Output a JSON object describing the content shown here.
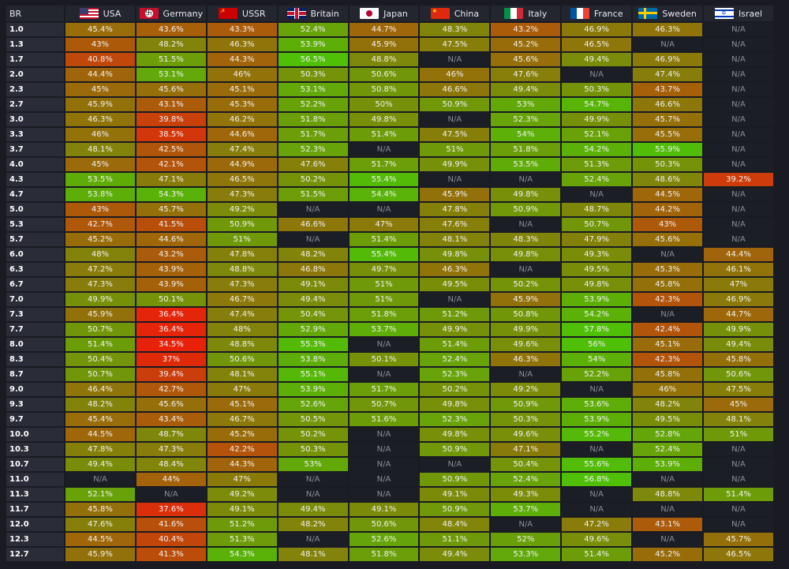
{
  "colors": {
    "na_bg": "#1c1e26",
    "row_label_bg": "#2a2c37",
    "header_bg": "#23252f",
    "scale_low": "#e8220a",
    "scale_mid": "#8a7a0a",
    "scale_high": "#4fbf08"
  },
  "header": {
    "br_label": "BR",
    "countries": [
      {
        "name": "USA",
        "flag": "usa-flag-icon"
      },
      {
        "name": "Germany",
        "flag": "germany-flag-icon"
      },
      {
        "name": "USSR",
        "flag": "ussr-flag-icon"
      },
      {
        "name": "Britain",
        "flag": "britain-flag-icon"
      },
      {
        "name": "Japan",
        "flag": "japan-flag-icon"
      },
      {
        "name": "China",
        "flag": "china-flag-icon"
      },
      {
        "name": "Italy",
        "flag": "italy-flag-icon"
      },
      {
        "name": "France",
        "flag": "france-flag-icon"
      },
      {
        "name": "Sweden",
        "flag": "sweden-flag-icon"
      },
      {
        "name": "Israel",
        "flag": "israel-flag-icon"
      }
    ]
  },
  "chart_data": {
    "type": "table",
    "columns": [
      "BR",
      "USA",
      "Germany",
      "USSR",
      "Britain",
      "Japan",
      "China",
      "Italy",
      "France",
      "Sweden",
      "Israel"
    ],
    "na_text": "N/A",
    "rows": [
      {
        "br": "1.0",
        "values": [
          "45.4%",
          "43.6%",
          "43.3%",
          "52.4%",
          "44.7%",
          "48.3%",
          "43.2%",
          "46.9%",
          "46.3%",
          "N/A"
        ]
      },
      {
        "br": "1.3",
        "values": [
          "43%",
          "48.2%",
          "46.3%",
          "53.9%",
          "45.9%",
          "47.5%",
          "45.2%",
          "46.5%",
          "N/A",
          "N/A"
        ]
      },
      {
        "br": "1.7",
        "values": [
          "40.8%",
          "51.5%",
          "44.3%",
          "56.5%",
          "48.8%",
          "N/A",
          "45.6%",
          "49.4%",
          "46.9%",
          "N/A"
        ]
      },
      {
        "br": "2.0",
        "values": [
          "44.4%",
          "53.1%",
          "46%",
          "50.3%",
          "50.6%",
          "46%",
          "47.6%",
          "N/A",
          "47.4%",
          "N/A"
        ]
      },
      {
        "br": "2.3",
        "values": [
          "45%",
          "45.6%",
          "45.1%",
          "53.1%",
          "50.8%",
          "46.6%",
          "49.4%",
          "50.3%",
          "43.7%",
          "N/A"
        ]
      },
      {
        "br": "2.7",
        "values": [
          "45.9%",
          "43.1%",
          "45.3%",
          "52.2%",
          "50%",
          "50.9%",
          "53%",
          "54.7%",
          "46.6%",
          "N/A"
        ]
      },
      {
        "br": "3.0",
        "values": [
          "46.3%",
          "39.8%",
          "46.2%",
          "51.8%",
          "49.8%",
          "N/A",
          "52.3%",
          "49.9%",
          "45.7%",
          "N/A"
        ]
      },
      {
        "br": "3.3",
        "values": [
          "46%",
          "38.5%",
          "44.6%",
          "51.7%",
          "51.4%",
          "47.5%",
          "54%",
          "52.1%",
          "45.5%",
          "N/A"
        ]
      },
      {
        "br": "3.7",
        "values": [
          "48.1%",
          "42.5%",
          "47.4%",
          "52.3%",
          "N/A",
          "51%",
          "51.8%",
          "54.2%",
          "55.9%",
          "N/A"
        ]
      },
      {
        "br": "4.0",
        "values": [
          "45%",
          "42.1%",
          "44.9%",
          "47.6%",
          "51.7%",
          "49.9%",
          "53.5%",
          "51.3%",
          "50.3%",
          "N/A"
        ]
      },
      {
        "br": "4.3",
        "values": [
          "53.5%",
          "47.1%",
          "46.5%",
          "50.2%",
          "55.4%",
          "N/A",
          "N/A",
          "52.4%",
          "48.6%",
          "39.2%"
        ]
      },
      {
        "br": "4.7",
        "values": [
          "53.8%",
          "54.3%",
          "47.3%",
          "51.5%",
          "54.4%",
          "45.9%",
          "49.8%",
          "N/A",
          "44.5%",
          "N/A"
        ]
      },
      {
        "br": "5.0",
        "values": [
          "43%",
          "45.7%",
          "49.2%",
          "N/A",
          "N/A",
          "47.8%",
          "50.9%",
          "48.7%",
          "44.2%",
          "N/A"
        ]
      },
      {
        "br": "5.3",
        "values": [
          "42.7%",
          "41.5%",
          "50.9%",
          "46.6%",
          "47%",
          "47.6%",
          "N/A",
          "50.7%",
          "43%",
          "N/A"
        ]
      },
      {
        "br": "5.7",
        "values": [
          "45.2%",
          "44.6%",
          "51%",
          "N/A",
          "51.4%",
          "48.1%",
          "48.3%",
          "47.9%",
          "45.6%",
          "N/A"
        ]
      },
      {
        "br": "6.0",
        "values": [
          "48%",
          "43.2%",
          "47.8%",
          "48.2%",
          "55.4%",
          "49.8%",
          "49.8%",
          "49.3%",
          "N/A",
          "44.4%"
        ]
      },
      {
        "br": "6.3",
        "values": [
          "47.2%",
          "43.9%",
          "48.8%",
          "46.8%",
          "49.7%",
          "46.3%",
          "N/A",
          "49.5%",
          "45.3%",
          "46.1%"
        ]
      },
      {
        "br": "6.7",
        "values": [
          "47.3%",
          "43.9%",
          "47.3%",
          "49.1%",
          "51%",
          "49.5%",
          "50.2%",
          "49.8%",
          "45.8%",
          "47%"
        ]
      },
      {
        "br": "7.0",
        "values": [
          "49.9%",
          "50.1%",
          "46.7%",
          "49.4%",
          "51%",
          "N/A",
          "45.9%",
          "53.9%",
          "42.3%",
          "46.9%"
        ]
      },
      {
        "br": "7.3",
        "values": [
          "45.9%",
          "36.4%",
          "47.4%",
          "50.4%",
          "51.8%",
          "51.2%",
          "50.8%",
          "54.2%",
          "N/A",
          "44.7%"
        ]
      },
      {
        "br": "7.7",
        "values": [
          "50.7%",
          "36.4%",
          "48%",
          "52.9%",
          "53.7%",
          "49.9%",
          "49.9%",
          "57.8%",
          "42.4%",
          "49.9%"
        ]
      },
      {
        "br": "8.0",
        "values": [
          "51.4%",
          "34.5%",
          "48.8%",
          "55.3%",
          "N/A",
          "51.4%",
          "49.6%",
          "56%",
          "45.1%",
          "49.4%"
        ]
      },
      {
        "br": "8.3",
        "values": [
          "50.4%",
          "37%",
          "50.6%",
          "53.8%",
          "50.1%",
          "52.4%",
          "46.3%",
          "54%",
          "42.3%",
          "45.8%"
        ]
      },
      {
        "br": "8.7",
        "values": [
          "50.7%",
          "39.4%",
          "48.1%",
          "55.1%",
          "N/A",
          "52.3%",
          "N/A",
          "52.2%",
          "45.8%",
          "50.6%"
        ]
      },
      {
        "br": "9.0",
        "values": [
          "46.4%",
          "42.7%",
          "47%",
          "53.9%",
          "51.7%",
          "50.2%",
          "49.2%",
          "N/A",
          "46%",
          "47.5%"
        ]
      },
      {
        "br": "9.3",
        "values": [
          "48.2%",
          "45.6%",
          "45.1%",
          "52.6%",
          "50.7%",
          "49.8%",
          "50.9%",
          "53.6%",
          "48.2%",
          "45%"
        ]
      },
      {
        "br": "9.7",
        "values": [
          "45.4%",
          "43.4%",
          "46.7%",
          "50.5%",
          "51.6%",
          "52.3%",
          "50.3%",
          "53.9%",
          "49.5%",
          "48.1%"
        ]
      },
      {
        "br": "10.0",
        "values": [
          "44.5%",
          "48.7%",
          "45.2%",
          "50.2%",
          "N/A",
          "49.8%",
          "49.6%",
          "55.2%",
          "52.8%",
          "51%"
        ]
      },
      {
        "br": "10.3",
        "values": [
          "47.8%",
          "47.3%",
          "42.2%",
          "50.3%",
          "N/A",
          "50.9%",
          "47.1%",
          "N/A",
          "52.4%",
          "N/A"
        ]
      },
      {
        "br": "10.7",
        "values": [
          "49.4%",
          "48.4%",
          "44.3%",
          "53%",
          "N/A",
          "N/A",
          "50.4%",
          "55.6%",
          "53.9%",
          "N/A"
        ]
      },
      {
        "br": "11.0",
        "values": [
          "N/A",
          "44%",
          "47%",
          "N/A",
          "N/A",
          "50.9%",
          "52.4%",
          "56.8%",
          "N/A",
          "N/A"
        ]
      },
      {
        "br": "11.3",
        "values": [
          "52.1%",
          "N/A",
          "49.2%",
          "N/A",
          "N/A",
          "49.1%",
          "49.3%",
          "N/A",
          "48.8%",
          "51.4%"
        ]
      },
      {
        "br": "11.7",
        "values": [
          "45.8%",
          "37.6%",
          "49.1%",
          "49.4%",
          "49.1%",
          "50.9%",
          "53.7%",
          "N/A",
          "N/A",
          "N/A"
        ]
      },
      {
        "br": "12.0",
        "values": [
          "47.6%",
          "41.6%",
          "51.2%",
          "48.2%",
          "50.6%",
          "48.4%",
          "N/A",
          "47.2%",
          "43.1%",
          "N/A"
        ]
      },
      {
        "br": "12.3",
        "values": [
          "44.5%",
          "40.4%",
          "51.3%",
          "N/A",
          "52.6%",
          "51.1%",
          "52%",
          "49.6%",
          "N/A",
          "45.7%"
        ]
      },
      {
        "br": "12.7",
        "values": [
          "45.9%",
          "41.3%",
          "54.3%",
          "48.1%",
          "51.8%",
          "49.4%",
          "53.3%",
          "51.4%",
          "45.2%",
          "46.5%"
        ]
      }
    ]
  }
}
